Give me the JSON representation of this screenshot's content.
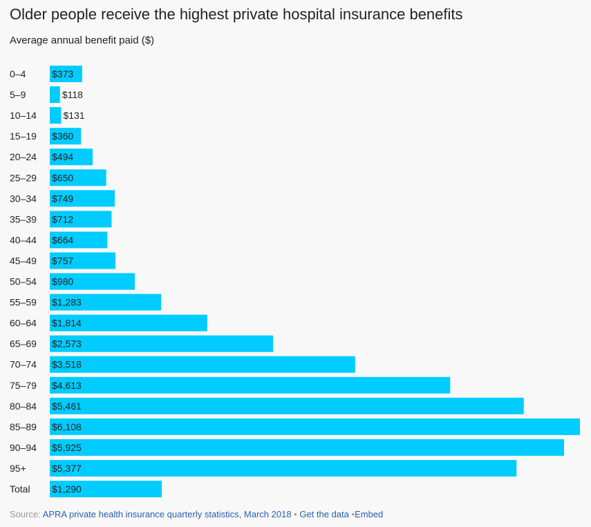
{
  "chart_data": {
    "type": "bar",
    "orientation": "horizontal",
    "title": "Older people receive the highest private hospital insurance benefits",
    "subtitle": "Average annual benefit paid ($)",
    "categories": [
      "0–4",
      "5–9",
      "10–14",
      "15–19",
      "20–24",
      "25–29",
      "30–34",
      "35–39",
      "40–44",
      "45–49",
      "50–54",
      "55–59",
      "60–64",
      "65–69",
      "70–74",
      "75–79",
      "80–84",
      "85–89",
      "90–94",
      "95+",
      "Total"
    ],
    "values": [
      373,
      118,
      131,
      360,
      494,
      650,
      749,
      712,
      664,
      757,
      980,
      1283,
      1814,
      2573,
      3518,
      4613,
      5461,
      6108,
      5925,
      5377,
      1290
    ],
    "value_labels": [
      "$373",
      "$118",
      "$131",
      "$360",
      "$494",
      "$650",
      "$749",
      "$712",
      "$664",
      "$757",
      "$980",
      "$1,283",
      "$1,814",
      "$2,573",
      "$3,518",
      "$4,613",
      "$5,461",
      "$6,108",
      "$5,925",
      "$5,377",
      "$1,290"
    ],
    "xlim": [
      0,
      6108
    ],
    "bar_color": "#00ccff",
    "label_color": "#222222",
    "grid": false,
    "legend": "none"
  },
  "footer": {
    "source_prefix": "Source: ",
    "source_link": "APRA private health insurance quarterly statistics, March 2018",
    "separator1": " • ",
    "get_data": "Get the data",
    "separator2": " •",
    "embed": "Embed"
  }
}
